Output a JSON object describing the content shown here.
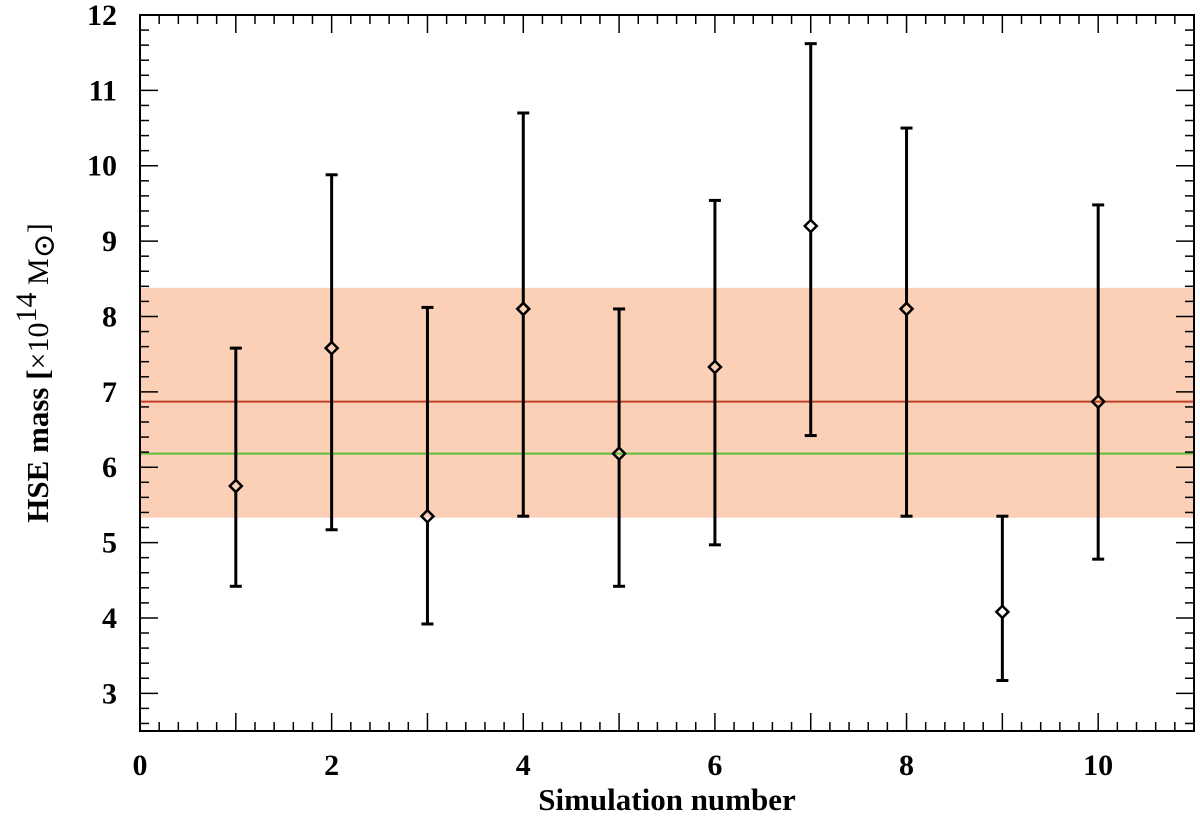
{
  "chart_data": {
    "type": "scatter",
    "title": "",
    "xlabel": "Simulation number",
    "ylabel": {
      "prefix": "HSE mass [",
      "times": "×10",
      "exponent": "14",
      "unit": " M",
      "sun_symbol": "⊙",
      "suffix": "]"
    },
    "xlim": [
      0,
      11
    ],
    "ylim": [
      2.5,
      12
    ],
    "x_ticks": [
      0,
      2,
      4,
      6,
      8,
      10
    ],
    "y_ticks": [
      3,
      4,
      5,
      6,
      7,
      8,
      9,
      10,
      11,
      12
    ],
    "grid": false,
    "series": [
      {
        "marker": "diamond",
        "color": "#000000",
        "points": [
          {
            "x": 1,
            "y": 5.75,
            "y_low": 4.42,
            "y_high": 7.58
          },
          {
            "x": 2,
            "y": 7.58,
            "y_low": 5.17,
            "y_high": 9.88
          },
          {
            "x": 3,
            "y": 5.35,
            "y_low": 3.92,
            "y_high": 8.12
          },
          {
            "x": 4,
            "y": 8.1,
            "y_low": 5.35,
            "y_high": 10.7
          },
          {
            "x": 5,
            "y": 6.18,
            "y_low": 4.42,
            "y_high": 8.1
          },
          {
            "x": 6,
            "y": 7.33,
            "y_low": 4.97,
            "y_high": 9.54
          },
          {
            "x": 7,
            "y": 9.2,
            "y_low": 6.42,
            "y_high": 11.62
          },
          {
            "x": 8,
            "y": 8.1,
            "y_low": 5.35,
            "y_high": 10.5
          },
          {
            "x": 9,
            "y": 4.08,
            "y_low": 3.17,
            "y_high": 5.35
          },
          {
            "x": 10,
            "y": 6.87,
            "y_low": 4.78,
            "y_high": 9.48
          }
        ]
      }
    ],
    "reference_lines": [
      {
        "y": 6.87,
        "color": "#c0412a"
      },
      {
        "y": 6.18,
        "color": "#5bbf3a"
      }
    ],
    "band": {
      "y_low": 5.33,
      "y_high": 8.38,
      "color": "#fccfb7"
    }
  }
}
